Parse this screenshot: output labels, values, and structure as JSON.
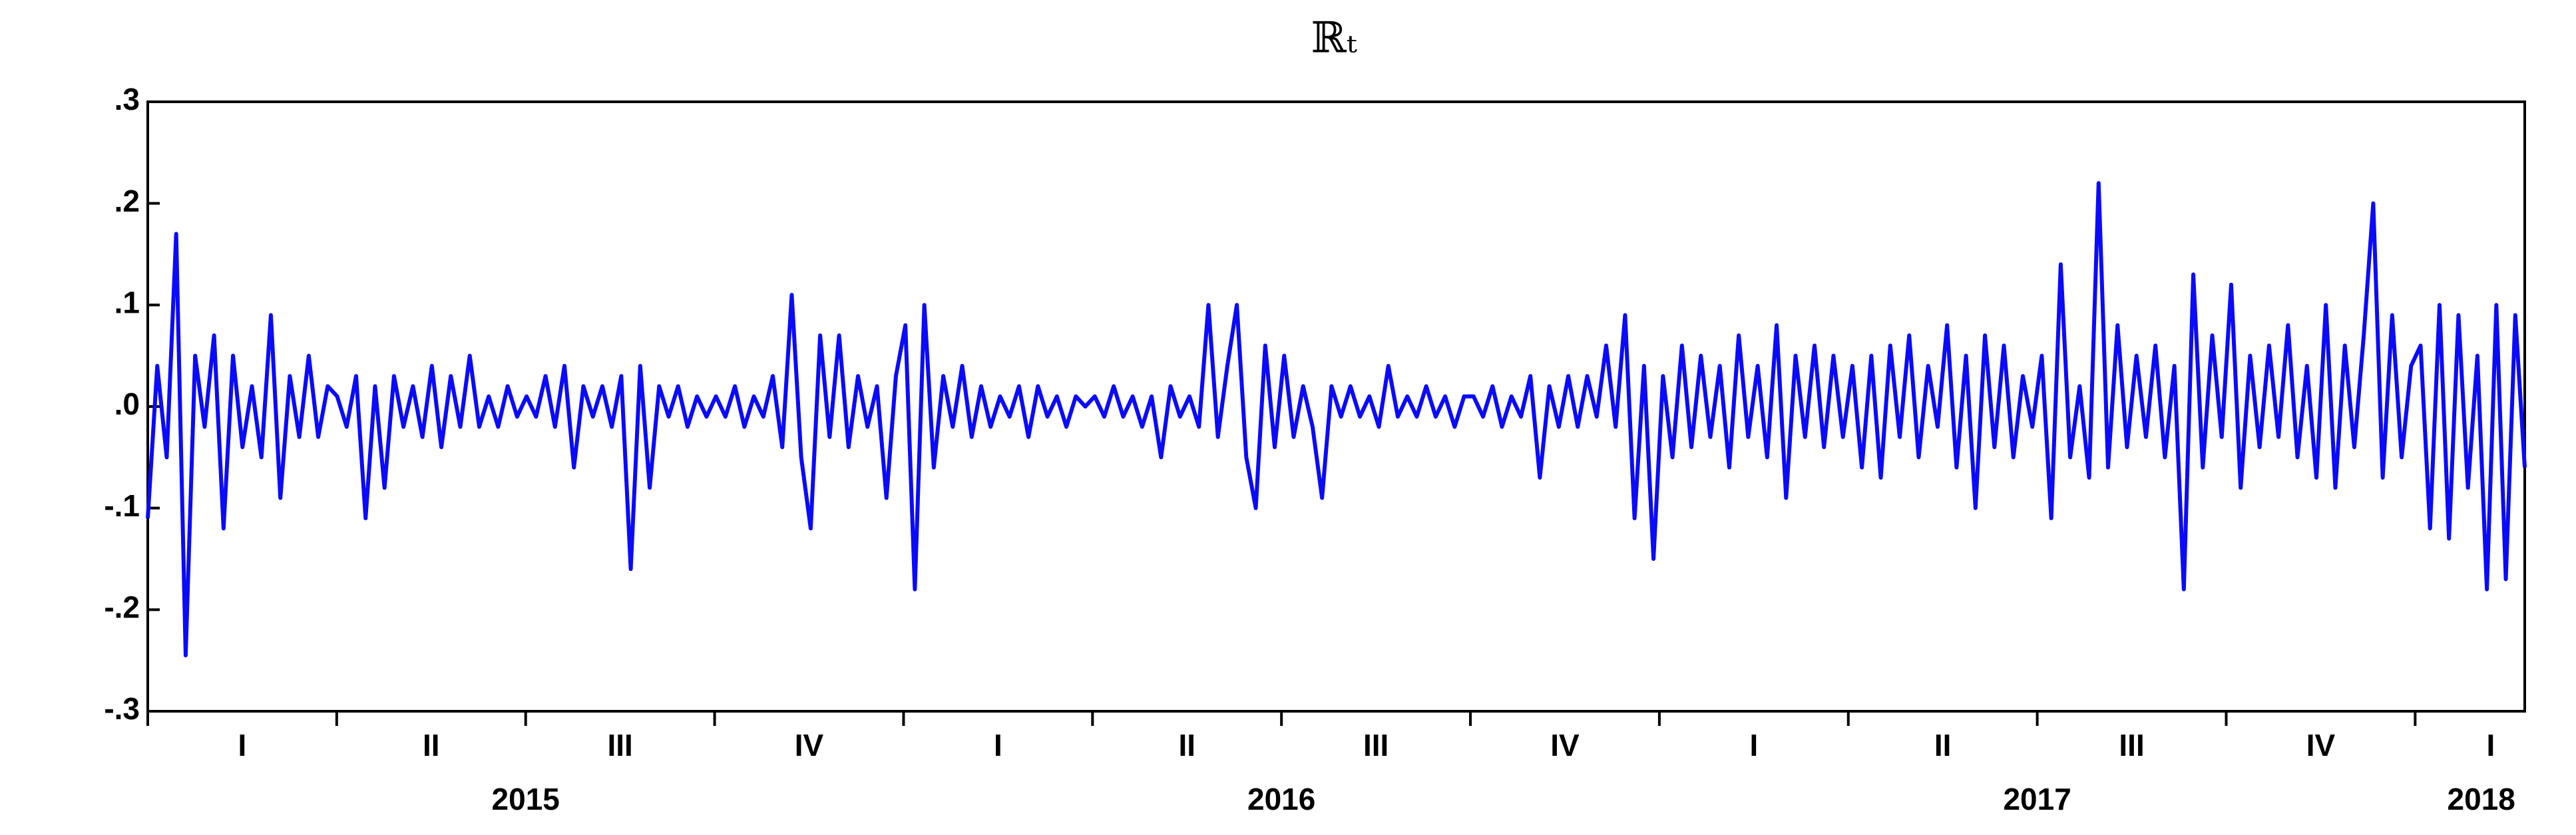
{
  "chart_data": {
    "type": "line",
    "title": "ℝₜ",
    "color": "#0a0aff",
    "ylim": [
      -0.3,
      0.3
    ],
    "yticks": [
      {
        "value": 0.3,
        "label": ".3"
      },
      {
        "value": 0.2,
        "label": ".2"
      },
      {
        "value": 0.1,
        "label": ".1"
      },
      {
        "value": 0,
        "label": ".0"
      },
      {
        "value": -0.1,
        "label": "-.1"
      },
      {
        "value": -0.2,
        "label": "-.2"
      },
      {
        "value": -0.3,
        "label": "-.3"
      }
    ],
    "xlim": [
      0,
      12.58
    ],
    "xminor_ticks": [
      0,
      1,
      2,
      3,
      4,
      5,
      6,
      7,
      8,
      9,
      10,
      11,
      12
    ],
    "xticks": [
      {
        "value": 0.5,
        "label": "I"
      },
      {
        "value": 1.5,
        "label": "II"
      },
      {
        "value": 2.5,
        "label": "III"
      },
      {
        "value": 3.5,
        "label": "IV"
      },
      {
        "value": 4.5,
        "label": "I"
      },
      {
        "value": 5.5,
        "label": "II"
      },
      {
        "value": 6.5,
        "label": "III"
      },
      {
        "value": 7.5,
        "label": "IV"
      },
      {
        "value": 8.5,
        "label": "I"
      },
      {
        "value": 9.5,
        "label": "II"
      },
      {
        "value": 10.5,
        "label": "III"
      },
      {
        "value": 11.5,
        "label": "IV"
      },
      {
        "value": 12.4,
        "label": "I"
      }
    ],
    "year_labels": [
      {
        "value": 2,
        "label": "2015"
      },
      {
        "value": 6,
        "label": "2016"
      },
      {
        "value": 10,
        "label": "2017"
      },
      {
        "value": 12.35,
        "label": "2018"
      }
    ],
    "values": [
      -0.11,
      0.04,
      -0.05,
      0.17,
      -0.245,
      0.05,
      -0.02,
      0.07,
      -0.12,
      0.05,
      -0.04,
      0.02,
      -0.05,
      0.09,
      -0.09,
      0.03,
      -0.03,
      0.05,
      -0.03,
      0.02,
      0.01,
      -0.02,
      0.03,
      -0.11,
      0.02,
      -0.08,
      0.03,
      -0.02,
      0.02,
      -0.03,
      0.04,
      -0.04,
      0.03,
      -0.02,
      0.05,
      -0.02,
      0.01,
      -0.02,
      0.02,
      -0.01,
      0.01,
      -0.01,
      0.03,
      -0.02,
      0.04,
      -0.06,
      0.02,
      -0.01,
      0.02,
      -0.02,
      0.03,
      -0.16,
      0.04,
      -0.08,
      0.02,
      -0.01,
      0.02,
      -0.02,
      0.01,
      -0.01,
      0.01,
      -0.01,
      0.02,
      -0.02,
      0.01,
      -0.01,
      0.03,
      -0.04,
      0.11,
      -0.05,
      -0.12,
      0.07,
      -0.03,
      0.07,
      -0.04,
      0.03,
      -0.02,
      0.02,
      -0.09,
      0.03,
      0.08,
      -0.18,
      0.1,
      -0.06,
      0.03,
      -0.02,
      0.04,
      -0.03,
      0.02,
      -0.02,
      0.01,
      -0.01,
      0.02,
      -0.03,
      0.02,
      -0.01,
      0.01,
      -0.02,
      0.01,
      0.0,
      0.01,
      -0.01,
      0.02,
      -0.01,
      0.01,
      -0.02,
      0.01,
      -0.05,
      0.02,
      -0.01,
      0.01,
      -0.02,
      0.1,
      -0.03,
      0.04,
      0.1,
      -0.05,
      -0.1,
      0.06,
      -0.04,
      0.05,
      -0.03,
      0.02,
      -0.02,
      -0.09,
      0.02,
      -0.01,
      0.02,
      -0.01,
      0.01,
      -0.02,
      0.04,
      -0.01,
      0.01,
      -0.01,
      0.02,
      -0.01,
      0.01,
      -0.02,
      0.01,
      0.01,
      -0.01,
      0.02,
      -0.02,
      0.01,
      -0.01,
      0.03,
      -0.07,
      0.02,
      -0.02,
      0.03,
      -0.02,
      0.03,
      -0.01,
      0.06,
      -0.02,
      0.09,
      -0.11,
      0.04,
      -0.15,
      0.03,
      -0.05,
      0.06,
      -0.04,
      0.05,
      -0.03,
      0.04,
      -0.06,
      0.07,
      -0.03,
      0.04,
      -0.05,
      0.08,
      -0.09,
      0.05,
      -0.03,
      0.06,
      -0.04,
      0.05,
      -0.03,
      0.04,
      -0.06,
      0.05,
      -0.07,
      0.06,
      -0.03,
      0.07,
      -0.05,
      0.04,
      -0.02,
      0.08,
      -0.06,
      0.05,
      -0.1,
      0.07,
      -0.04,
      0.06,
      -0.05,
      0.03,
      -0.02,
      0.05,
      -0.11,
      0.14,
      -0.05,
      0.02,
      -0.07,
      0.22,
      -0.06,
      0.08,
      -0.04,
      0.05,
      -0.03,
      0.06,
      -0.05,
      0.04,
      -0.18,
      0.13,
      -0.06,
      0.07,
      -0.03,
      0.12,
      -0.08,
      0.05,
      -0.04,
      0.06,
      -0.03,
      0.08,
      -0.05,
      0.04,
      -0.07,
      0.1,
      -0.08,
      0.06,
      -0.04,
      0.07,
      0.2,
      -0.07,
      0.09,
      -0.05,
      0.04,
      0.06,
      -0.12,
      0.1,
      -0.13,
      0.09,
      -0.08,
      0.05,
      -0.18,
      0.1,
      -0.17,
      0.09,
      -0.06
    ]
  }
}
